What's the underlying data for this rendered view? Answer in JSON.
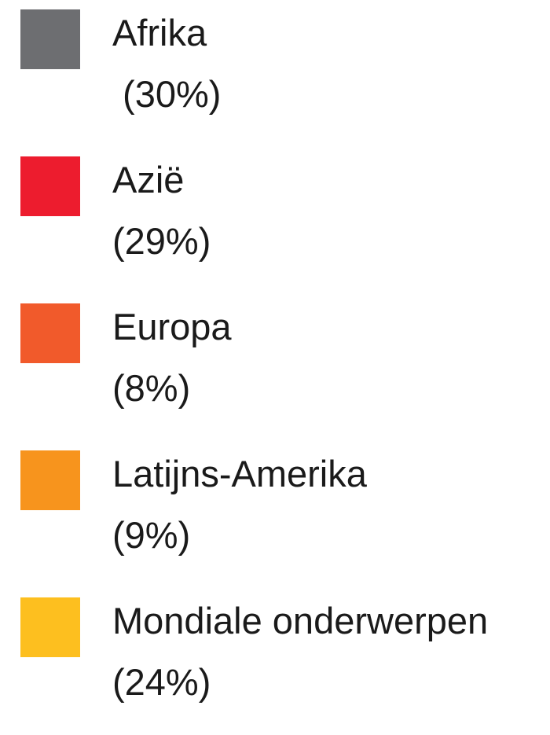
{
  "legend": {
    "items": [
      {
        "label": "Afrika",
        "share": " (30%)",
        "color": "#6d6e71"
      },
      {
        "label": "Azië",
        "share": "(29%)",
        "color": "#ed1c2e"
      },
      {
        "label": "Europa",
        "share": "(8%)",
        "color": "#f15a2b"
      },
      {
        "label": "Latijns-Amerika",
        "share": "(9%)",
        "color": "#f7941d"
      },
      {
        "label": "Mondiale onderwerpen",
        "share": "(24%)",
        "color": "#fdbf1f"
      }
    ]
  }
}
